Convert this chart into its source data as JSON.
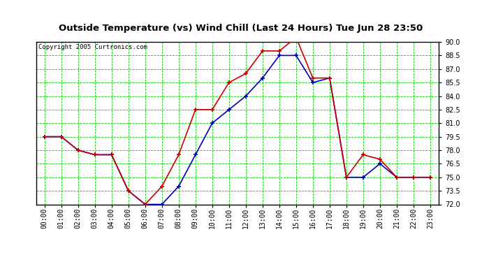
{
  "title": "Outside Temperature (vs) Wind Chill (Last 24 Hours) Tue Jun 28 23:50",
  "copyright": "Copyright 2005 Curtronics.com",
  "x_labels": [
    "00:00",
    "01:00",
    "02:00",
    "03:00",
    "04:00",
    "05:00",
    "06:00",
    "07:00",
    "08:00",
    "09:00",
    "10:00",
    "11:00",
    "12:00",
    "13:00",
    "14:00",
    "15:00",
    "16:00",
    "17:00",
    "18:00",
    "19:00",
    "20:00",
    "21:00",
    "22:00",
    "23:00"
  ],
  "ylim": [
    72.0,
    90.0
  ],
  "yticks": [
    72.0,
    73.5,
    75.0,
    76.5,
    78.0,
    79.5,
    81.0,
    82.5,
    84.0,
    85.5,
    87.0,
    88.5,
    90.0
  ],
  "blue_y": [
    79.5,
    79.5,
    78.0,
    77.5,
    77.5,
    73.5,
    72.0,
    72.0,
    74.0,
    77.5,
    81.0,
    82.5,
    84.0,
    86.0,
    88.5,
    88.5,
    85.5,
    86.0,
    75.0,
    75.0,
    76.5,
    75.0,
    75.0,
    75.0
  ],
  "red_y": [
    79.5,
    79.5,
    78.0,
    77.5,
    77.5,
    73.5,
    72.0,
    74.0,
    77.5,
    82.5,
    82.5,
    85.5,
    86.5,
    89.0,
    89.0,
    90.5,
    86.0,
    86.0,
    75.0,
    77.5,
    77.0,
    75.0,
    75.0,
    75.0
  ],
  "blue_color": "#0000bb",
  "red_color": "#cc0000",
  "grid_color": "#00cc00",
  "bg_color": "#ffffff",
  "title_bg": "#c0c0c0",
  "border_color": "#000000",
  "copyright_color": "#000000"
}
